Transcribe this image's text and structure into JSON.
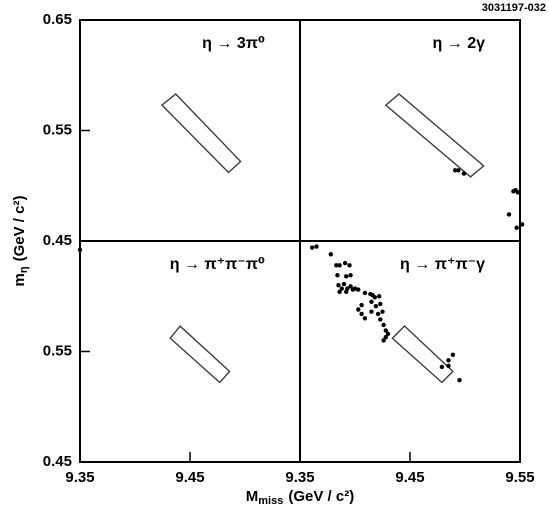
{
  "figure_code": "3031197-032",
  "x_label": {
    "main": "M",
    "sub": "miss",
    "unit": "(GeV / c²)"
  },
  "y_label": {
    "main": "m",
    "sub": "η",
    "unit": "(GeV / c²)"
  },
  "chart_data": [
    {
      "type": "scatter",
      "title": "η → 3π⁰",
      "xlim": [
        9.35,
        9.55
      ],
      "ylim": [
        0.45,
        0.65
      ],
      "xticks": [],
      "yticks": [
        0.45,
        0.55,
        0.65
      ],
      "color": "#000000",
      "x": [],
      "values": [],
      "box": {
        "x": [
          9.4245,
          9.437,
          9.496,
          9.485
        ],
        "y": [
          0.573,
          0.583,
          0.522,
          0.512
        ]
      }
    },
    {
      "type": "scatter",
      "title": "η → 2γ",
      "xlim": [
        9.35,
        9.55
      ],
      "ylim": [
        0.45,
        0.65
      ],
      "xticks": [],
      "yticks": [],
      "color": "#000000",
      "x": [
        9.491,
        9.494,
        9.499,
        9.544,
        9.546,
        9.548,
        9.54,
        9.547,
        9.552
      ],
      "values": [
        0.514,
        0.514,
        0.511,
        0.495,
        0.496,
        0.494,
        0.474,
        0.462,
        0.465
      ],
      "box": {
        "x": [
          9.428,
          9.44,
          9.517,
          9.505
        ],
        "y": [
          0.573,
          0.583,
          0.518,
          0.508
        ]
      }
    },
    {
      "type": "scatter",
      "title": "η → π⁺π⁻π⁰",
      "xlim": [
        9.35,
        9.55
      ],
      "ylim": [
        0.45,
        0.65
      ],
      "xticks": [
        9.35,
        9.45
      ],
      "yticks": [
        0.45,
        0.55
      ],
      "color": "#000000",
      "x": [
        9.35
      ],
      "values": [
        0.642
      ],
      "box": {
        "x": [
          9.432,
          9.441,
          9.486,
          9.477
        ],
        "y": [
          0.562,
          0.573,
          0.532,
          0.522
        ]
      }
    },
    {
      "type": "scatter",
      "title": "η → π⁺π⁻γ",
      "xlim": [
        9.35,
        9.55
      ],
      "ylim": [
        0.45,
        0.65
      ],
      "xticks": [
        9.35,
        9.45,
        9.55
      ],
      "yticks": [],
      "color": "#000000",
      "x": [
        9.361,
        9.365,
        9.378,
        9.383,
        9.386,
        9.391,
        9.395,
        9.384,
        9.392,
        9.396,
        9.385,
        9.39,
        9.388,
        9.393,
        9.396,
        9.4,
        9.386,
        9.392,
        9.398,
        9.403,
        9.409,
        9.414,
        9.416,
        9.418,
        9.422,
        9.423,
        9.419,
        9.415,
        9.406,
        9.403,
        9.406,
        9.409,
        9.415,
        9.421,
        9.425,
        9.423,
        9.426,
        9.428,
        9.428,
        9.426,
        9.43,
        9.489,
        9.485,
        9.479,
        9.495,
        9.485
      ],
      "values": [
        0.644,
        0.645,
        0.638,
        0.628,
        0.628,
        0.63,
        0.628,
        0.619,
        0.618,
        0.619,
        0.61,
        0.611,
        0.607,
        0.607,
        0.609,
        0.607,
        0.604,
        0.604,
        0.606,
        0.606,
        0.603,
        0.602,
        0.601,
        0.599,
        0.6,
        0.593,
        0.591,
        0.595,
        0.592,
        0.588,
        0.584,
        0.58,
        0.586,
        0.584,
        0.586,
        0.579,
        0.574,
        0.569,
        0.563,
        0.56,
        0.566,
        0.547,
        0.542,
        0.536,
        0.524,
        0.537
      ],
      "box": {
        "x": [
          9.434,
          9.445,
          9.489,
          9.479
        ],
        "y": [
          0.562,
          0.573,
          0.532,
          0.522
        ]
      }
    }
  ]
}
